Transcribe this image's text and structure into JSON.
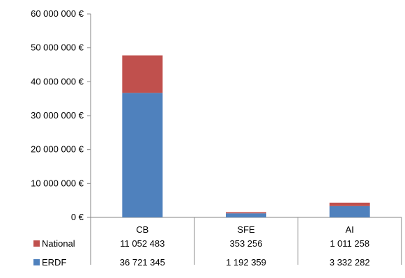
{
  "chart_data": {
    "type": "bar",
    "stacked": true,
    "categories": [
      "CB",
      "SFE",
      "AI"
    ],
    "series": [
      {
        "name": "ERDF",
        "color": "#4f81bd",
        "values": [
          36721345,
          1192359,
          3332282
        ],
        "labels": [
          "36 721 345",
          "1 192 359",
          "3 332 282"
        ]
      },
      {
        "name": "National",
        "color": "#c0504d",
        "values": [
          11052483,
          353256,
          1011258
        ],
        "labels": [
          "11 052 483",
          "353 256",
          "1 011 258"
        ]
      }
    ],
    "ylim": [
      0,
      60000000
    ],
    "yticks": [
      0,
      10000000,
      20000000,
      30000000,
      40000000,
      50000000,
      60000000
    ],
    "ytick_labels": [
      "0 €",
      "10 000 000 €",
      "20 000 000 €",
      "30 000 000 €",
      "40 000 000 €",
      "50 000 000 €",
      "60 000 000 €"
    ],
    "grid": false,
    "legend": "data-table"
  }
}
